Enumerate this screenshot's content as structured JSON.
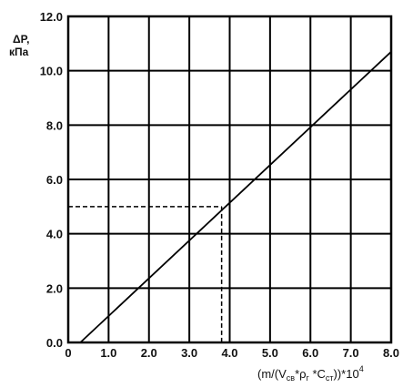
{
  "chart_data": {
    "type": "line",
    "title": "",
    "ylabel_line1": "ΔP,",
    "ylabel_line2": "кПа",
    "xlabel_parts": {
      "open": "(m/(V",
      "sub1": "св",
      "star1": "*ρ",
      "sub2": "г",
      "star2": " *C",
      "sub3": "ст",
      "close": "))*10",
      "sup": "4"
    },
    "xlim": [
      0,
      8.0
    ],
    "ylim": [
      0,
      12.0
    ],
    "x_ticks": [
      0,
      1.0,
      2.0,
      3.0,
      4.0,
      5.0,
      6.0,
      7.0,
      8.0
    ],
    "y_ticks": [
      0.0,
      2.0,
      4.0,
      6.0,
      8.0,
      10.0,
      12.0
    ],
    "x_tick_labels": [
      "0",
      "1.0",
      "2.0",
      "3.0",
      "4.0",
      "5.0",
      "6.0",
      "7.0",
      "8.0"
    ],
    "y_tick_labels": [
      "0.0",
      "2.0",
      "4.0",
      "6.0",
      "8.0",
      "10.0",
      "12.0"
    ],
    "grid": true,
    "series": [
      {
        "x": [
          0.3,
          8.0
        ],
        "y": [
          0.0,
          10.7
        ]
      }
    ],
    "reference": {
      "x": 3.8,
      "y": 5.0,
      "style": "dashed"
    },
    "colors": {
      "line": "#000000",
      "grid": "#000000",
      "background": "#ffffff"
    }
  }
}
